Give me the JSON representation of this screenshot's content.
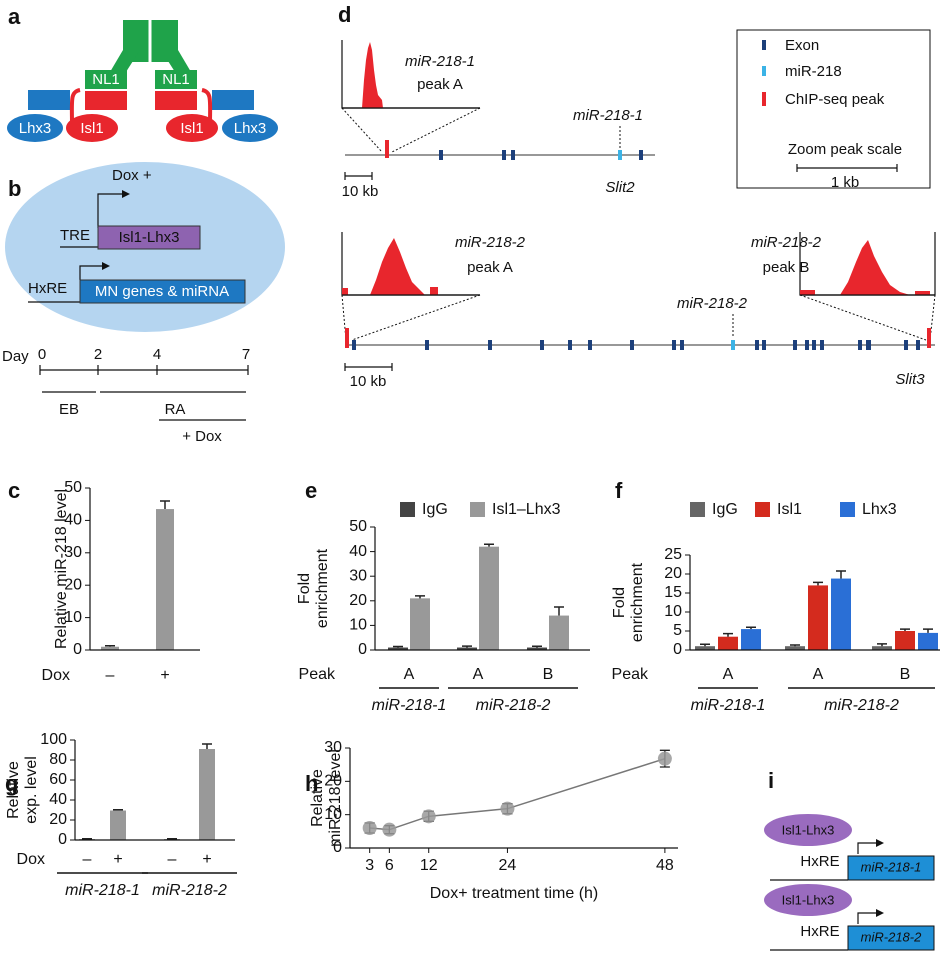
{
  "panels": {
    "a": {
      "letter": "a",
      "labels": [
        "NL1",
        "NL1",
        "Lhx3",
        "Isl1",
        "Isl1",
        "Lhx3"
      ]
    },
    "b": {
      "letter": "b",
      "dox": "Dox +",
      "tre": "TRE",
      "construct": "Isl1-Lhx3",
      "hxre": "HxRE",
      "targets": "MN genes & miRNA",
      "day": "Day",
      "days": [
        0,
        2,
        4,
        7
      ],
      "stages": [
        "EB",
        "RA",
        "+ Dox"
      ]
    },
    "d": {
      "letter": "d",
      "legend": [
        "Exon",
        "miR-218",
        "ChIP-seq peak"
      ],
      "scale_title": "Zoom peak scale",
      "scale": "1 kb",
      "track1": {
        "zoom": [
          "miR-218-1",
          "peak A"
        ],
        "mirna": "miR-218-1",
        "gene": "Slit2",
        "scale": "10 kb"
      },
      "track2": {
        "zoom_a": [
          "miR-218-2",
          "peak A"
        ],
        "zoom_b": [
          "miR-218-2",
          "peak B"
        ],
        "mirna": "miR-218-2",
        "gene": "Slit3",
        "scale": "10 kb"
      }
    },
    "i": {
      "letter": "i",
      "rows": [
        {
          "factor": "Isl1-Lhx3",
          "element": "HxRE",
          "gene": "miR-218-1"
        },
        {
          "factor": "Isl1-Lhx3",
          "element": "HxRE",
          "gene": "miR-218-2"
        }
      ]
    }
  },
  "chart_data": [
    {
      "type": "bar",
      "letter": "c",
      "y_label": [
        "Relative miR-218 level"
      ],
      "category_axis_label": "Dox",
      "categories": [
        "–",
        "+"
      ],
      "series": [
        {
          "color": "#999999",
          "values": [
            1,
            43.5
          ],
          "errors": [
            0.3,
            2.5
          ]
        }
      ],
      "ylim": [
        0,
        50
      ],
      "yticks": [
        0,
        10,
        20,
        30,
        40,
        50
      ]
    },
    {
      "type": "bar",
      "letter": "e",
      "y_label": [
        "Fold",
        "enrichment"
      ],
      "category_axis_label": "Peak",
      "categories": [
        "A",
        "A",
        "B"
      ],
      "groups": [
        {
          "label": "miR-218-1",
          "categories": [
            0
          ]
        },
        {
          "label": "miR-218-2",
          "categories": [
            1,
            2
          ]
        }
      ],
      "series": [
        {
          "name": "IgG",
          "color": "#444444",
          "values": [
            1,
            1,
            1
          ],
          "errors": [
            0.4,
            0.6,
            0.5
          ]
        },
        {
          "name": "Isl1–Lhx3",
          "color": "#999999",
          "values": [
            21,
            42,
            14
          ],
          "errors": [
            1,
            1,
            3.5
          ]
        }
      ],
      "ylim": [
        0,
        50
      ],
      "yticks": [
        0,
        10,
        20,
        30,
        40,
        50
      ]
    },
    {
      "type": "bar",
      "letter": "f",
      "y_label": [
        "Fold",
        "enrichment"
      ],
      "category_axis_label": "Peak",
      "categories": [
        "A",
        "A",
        "B"
      ],
      "groups": [
        {
          "label": "miR-218-1",
          "categories": [
            0
          ]
        },
        {
          "label": "miR-218-2",
          "categories": [
            1,
            2
          ]
        }
      ],
      "series": [
        {
          "name": "IgG",
          "color": "#666666",
          "values": [
            1,
            1,
            1
          ],
          "errors": [
            0.5,
            0.3,
            0.6
          ]
        },
        {
          "name": "Isl1",
          "color": "#d42b1e",
          "values": [
            3.5,
            17,
            5
          ],
          "errors": [
            0.8,
            0.8,
            0.5
          ]
        },
        {
          "name": "Lhx3",
          "color": "#2a6fd6",
          "values": [
            5.5,
            18.8,
            4.5
          ],
          "errors": [
            0.5,
            2,
            1
          ]
        }
      ],
      "ylim": [
        0,
        25
      ],
      "yticks": [
        0,
        5,
        10,
        15,
        20,
        25
      ]
    },
    {
      "type": "bar",
      "letter": "g",
      "y_label": [
        "Relative",
        "exp. level"
      ],
      "category_axis_label": "Dox",
      "categories": [
        "–",
        "+",
        "–",
        "+"
      ],
      "groups": [
        {
          "label": "miR-218-1",
          "categories": [
            0,
            1
          ]
        },
        {
          "label": "miR-218-2",
          "categories": [
            2,
            3
          ]
        }
      ],
      "series": [
        {
          "color": "#999999",
          "values": [
            1,
            29.5,
            1,
            91
          ],
          "errors": [
            0.3,
            0.7,
            0.3,
            5
          ]
        }
      ],
      "ylim": [
        0,
        100
      ],
      "yticks": [
        0,
        20,
        40,
        60,
        80,
        100
      ]
    },
    {
      "type": "line",
      "letter": "h",
      "y_label": [
        "Relative",
        "miR-218 level"
      ],
      "x_label": "Dox+ treatment time (h)",
      "x": [
        3,
        6,
        12,
        24,
        48
      ],
      "values": [
        6,
        5.5,
        9.5,
        11.8,
        26.8
      ],
      "errors": [
        1.5,
        1.2,
        1.5,
        1.5,
        2.5
      ],
      "color": "#777777",
      "xlim": [
        0,
        50
      ],
      "xticks": [
        3,
        6,
        12,
        24,
        48
      ],
      "ylim": [
        0,
        30
      ],
      "yticks": [
        0,
        10,
        20,
        30
      ]
    }
  ]
}
